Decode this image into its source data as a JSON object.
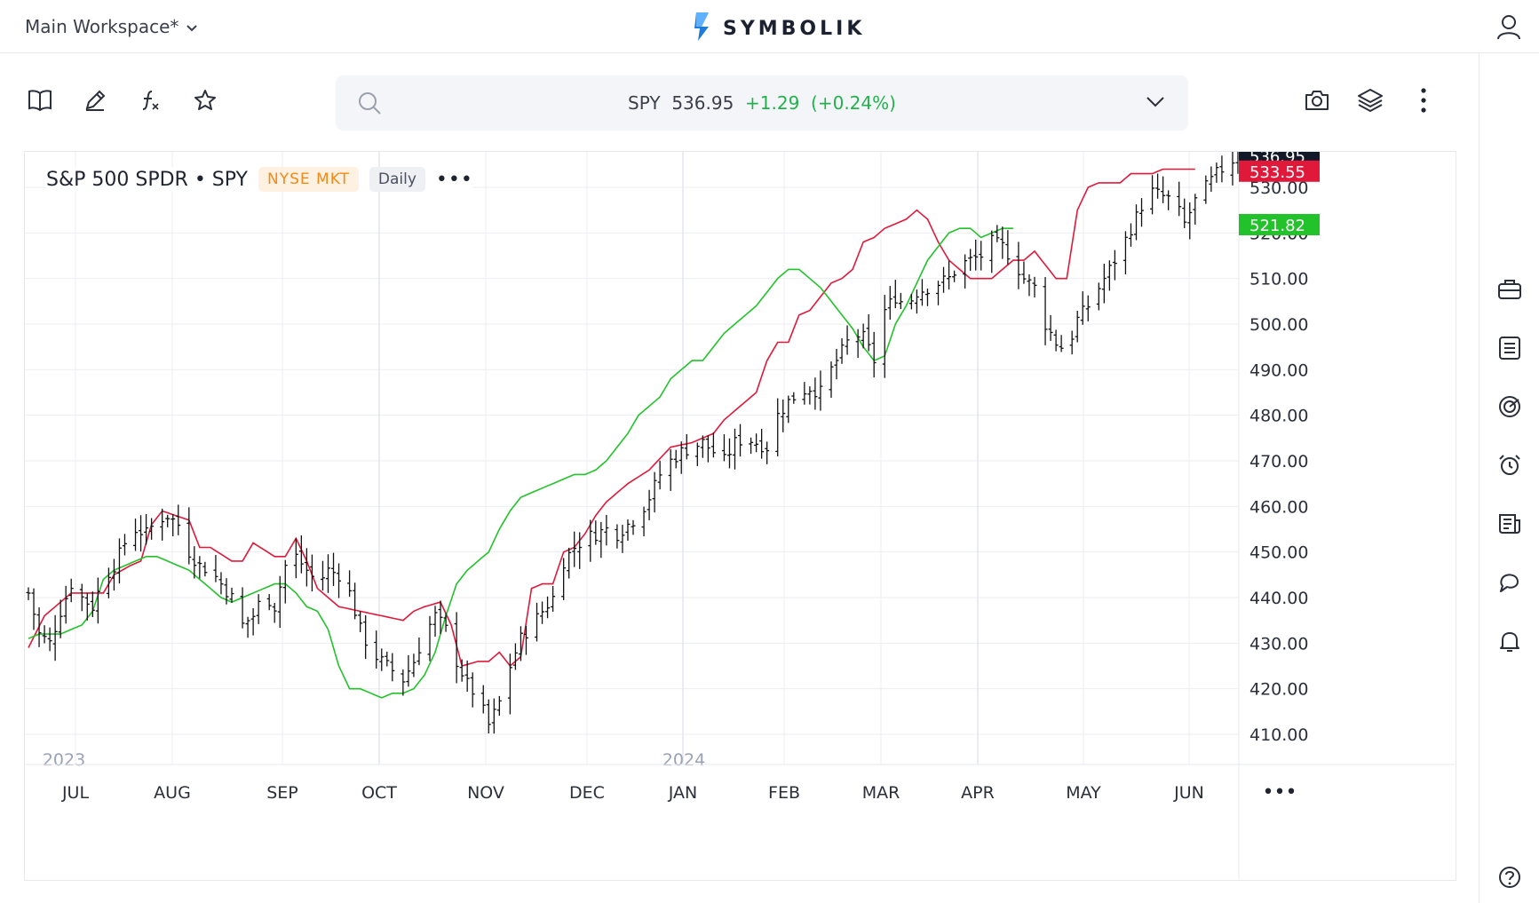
{
  "header": {
    "workspace_label": "Main Workspace*",
    "brand": "SYMBOLIK"
  },
  "search": {
    "ticker": "SPY",
    "price": "536.95",
    "change": "+1.29",
    "change_pct": "(+0.24%)"
  },
  "chart_header": {
    "title": "S&P 500 SPDR • SPY",
    "exchange": "NYSE MKT",
    "interval": "Daily",
    "menu": "•••"
  },
  "icons": {
    "left_tools": [
      "book-icon",
      "pencil-icon",
      "function-icon",
      "star-icon"
    ],
    "right_tools": [
      "camera-icon",
      "layers-icon",
      "more-vertical-icon"
    ],
    "rail": [
      "briefcase-icon",
      "list-icon",
      "radar-icon",
      "alarm-icon",
      "news-icon",
      "chat-icon",
      "bell-icon",
      "help-icon"
    ]
  },
  "colors": {
    "up": "#22b14c",
    "upper_band": "#e0193a",
    "lower_band": "#22c22a",
    "last_price_bg": "#111827",
    "grid": "#eceef3"
  },
  "chart_data": {
    "type": "ohlc",
    "title": "",
    "y_ticks": [
      "530.00",
      "520.00",
      "510.00",
      "500.00",
      "490.00",
      "480.00",
      "470.00",
      "460.00",
      "450.00",
      "440.00",
      "430.00",
      "420.00",
      "410.00"
    ],
    "ylim": [
      406,
      539
    ],
    "x_months": [
      "JUL",
      "AUG",
      "SEP",
      "OCT",
      "NOV",
      "DEC",
      "JAN",
      "FEB",
      "MAR",
      "APR",
      "MAY",
      "JUN"
    ],
    "year_labels": [
      "2023",
      "2024"
    ],
    "axis_menu": "•••",
    "price_labels": [
      {
        "value": "536.95",
        "color": "#111827",
        "y": 536.95
      },
      {
        "value": "533.55",
        "color": "#e0193a",
        "y": 533.55
      },
      {
        "value": "521.82",
        "color": "#22c22a",
        "y": 521.82
      }
    ],
    "series": [
      {
        "name": "SPY",
        "type": "ohlc",
        "knots": [
          [
            0,
            441
          ],
          [
            2,
            432
          ],
          [
            4,
            430
          ],
          [
            6,
            437
          ],
          [
            8,
            443
          ],
          [
            10,
            440
          ],
          [
            12,
            438
          ],
          [
            14,
            444
          ],
          [
            16,
            447
          ],
          [
            18,
            452
          ],
          [
            20,
            455
          ],
          [
            22,
            454
          ],
          [
            24,
            457
          ],
          [
            26,
            458
          ],
          [
            28,
            456
          ],
          [
            30,
            450
          ],
          [
            32,
            447
          ],
          [
            34,
            446
          ],
          [
            36,
            443
          ],
          [
            38,
            440
          ],
          [
            40,
            434
          ],
          [
            42,
            436
          ],
          [
            44,
            441
          ],
          [
            46,
            438
          ],
          [
            48,
            447
          ],
          [
            50,
            449
          ],
          [
            52,
            446
          ],
          [
            54,
            443
          ],
          [
            56,
            446
          ],
          [
            58,
            445
          ],
          [
            60,
            441
          ],
          [
            62,
            433
          ],
          [
            64,
            428
          ],
          [
            66,
            426
          ],
          [
            68,
            424
          ],
          [
            70,
            422
          ],
          [
            72,
            426
          ],
          [
            74,
            432
          ],
          [
            76,
            436
          ],
          [
            78,
            433
          ],
          [
            80,
            426
          ],
          [
            82,
            421
          ],
          [
            84,
            418
          ],
          [
            86,
            412
          ],
          [
            88,
            417
          ],
          [
            90,
            425
          ],
          [
            92,
            431
          ],
          [
            94,
            434
          ],
          [
            96,
            437
          ],
          [
            98,
            440
          ],
          [
            100,
            448
          ],
          [
            102,
            451
          ],
          [
            104,
            453
          ],
          [
            106,
            454
          ],
          [
            108,
            455
          ],
          [
            110,
            454
          ],
          [
            112,
            456
          ],
          [
            114,
            458
          ],
          [
            116,
            462
          ],
          [
            118,
            467
          ],
          [
            120,
            470
          ],
          [
            122,
            472
          ],
          [
            124,
            473
          ],
          [
            126,
            474
          ],
          [
            128,
            472
          ],
          [
            130,
            470
          ],
          [
            132,
            474
          ],
          [
            134,
            475
          ],
          [
            136,
            474
          ],
          [
            138,
            473
          ],
          [
            140,
            480
          ],
          [
            142,
            483
          ],
          [
            144,
            485
          ],
          [
            146,
            486
          ],
          [
            148,
            485
          ],
          [
            150,
            490
          ],
          [
            152,
            494
          ],
          [
            154,
            498
          ],
          [
            156,
            497
          ],
          [
            158,
            492
          ],
          [
            160,
            503
          ],
          [
            162,
            506
          ],
          [
            164,
            504
          ],
          [
            166,
            507
          ],
          [
            168,
            508
          ],
          [
            170,
            509
          ],
          [
            172,
            510
          ],
          [
            174,
            513
          ],
          [
            176,
            514
          ],
          [
            178,
            515
          ],
          [
            180,
            518
          ],
          [
            182,
            517
          ],
          [
            184,
            514
          ],
          [
            186,
            510
          ],
          [
            188,
            508
          ],
          [
            190,
            500
          ],
          [
            192,
            496
          ],
          [
            194,
            494
          ],
          [
            196,
            501
          ],
          [
            198,
            504
          ],
          [
            200,
            508
          ],
          [
            202,
            512
          ],
          [
            204,
            516
          ],
          [
            206,
            521
          ],
          [
            208,
            526
          ],
          [
            210,
            529
          ],
          [
            212,
            528
          ],
          [
            214,
            527
          ],
          [
            216,
            522
          ],
          [
            218,
            527
          ],
          [
            220,
            530
          ],
          [
            222,
            533
          ],
          [
            224,
            535
          ],
          [
            226,
            537
          ]
        ]
      },
      {
        "name": "upper",
        "type": "line",
        "color": "#e0193a",
        "knots": [
          [
            0,
            429
          ],
          [
            3,
            436
          ],
          [
            8,
            441
          ],
          [
            14,
            441
          ],
          [
            16,
            445
          ],
          [
            19,
            447
          ],
          [
            21,
            448
          ],
          [
            23,
            456
          ],
          [
            25,
            459
          ],
          [
            30,
            457
          ],
          [
            32,
            451
          ],
          [
            34,
            451
          ],
          [
            38,
            448
          ],
          [
            40,
            448
          ],
          [
            42,
            452
          ],
          [
            46,
            449
          ],
          [
            48,
            449
          ],
          [
            50,
            453
          ],
          [
            52,
            448
          ],
          [
            54,
            442
          ],
          [
            58,
            438
          ],
          [
            62,
            437
          ],
          [
            66,
            436
          ],
          [
            70,
            435
          ],
          [
            72,
            437
          ],
          [
            74,
            438
          ],
          [
            77,
            439
          ],
          [
            79,
            434
          ],
          [
            81,
            425
          ],
          [
            84,
            426
          ],
          [
            86,
            426
          ],
          [
            88,
            428
          ],
          [
            90,
            425
          ],
          [
            92,
            427
          ],
          [
            94,
            442
          ],
          [
            96,
            443
          ],
          [
            98,
            443
          ],
          [
            100,
            450
          ],
          [
            102,
            451
          ],
          [
            104,
            454
          ],
          [
            106,
            458
          ],
          [
            108,
            461
          ],
          [
            112,
            465
          ],
          [
            116,
            468
          ],
          [
            120,
            473
          ],
          [
            124,
            474
          ],
          [
            126,
            475
          ],
          [
            128,
            476
          ],
          [
            130,
            479
          ],
          [
            132,
            481
          ],
          [
            134,
            483
          ],
          [
            136,
            485
          ],
          [
            138,
            492
          ],
          [
            140,
            496
          ],
          [
            142,
            496
          ],
          [
            144,
            502
          ],
          [
            146,
            503
          ],
          [
            148,
            506
          ],
          [
            150,
            509
          ],
          [
            152,
            510
          ],
          [
            154,
            512
          ],
          [
            156,
            518
          ],
          [
            158,
            519
          ],
          [
            160,
            521
          ],
          [
            164,
            523
          ],
          [
            166,
            525
          ],
          [
            168,
            523
          ],
          [
            170,
            518
          ],
          [
            172,
            514
          ],
          [
            174,
            512
          ],
          [
            176,
            510
          ],
          [
            180,
            510
          ],
          [
            182,
            512
          ],
          [
            184,
            514
          ],
          [
            186,
            514
          ],
          [
            188,
            516
          ],
          [
            190,
            513
          ],
          [
            192,
            510
          ],
          [
            194,
            510
          ],
          [
            196,
            525
          ],
          [
            198,
            530
          ],
          [
            200,
            531
          ],
          [
            202,
            531
          ],
          [
            204,
            531
          ],
          [
            206,
            533
          ],
          [
            208,
            533
          ],
          [
            210,
            533
          ],
          [
            212,
            534
          ],
          [
            214,
            534
          ],
          [
            216,
            534
          ],
          [
            218,
            534
          ]
        ]
      },
      {
        "name": "lower",
        "type": "line",
        "color": "#22c22a",
        "knots": [
          [
            0,
            431
          ],
          [
            2,
            432
          ],
          [
            4,
            432
          ],
          [
            6,
            432
          ],
          [
            8,
            433
          ],
          [
            10,
            434
          ],
          [
            12,
            437
          ],
          [
            14,
            444
          ],
          [
            16,
            446
          ],
          [
            18,
            447
          ],
          [
            20,
            448
          ],
          [
            22,
            449
          ],
          [
            24,
            449
          ],
          [
            26,
            448
          ],
          [
            28,
            447
          ],
          [
            30,
            446
          ],
          [
            32,
            444
          ],
          [
            34,
            442
          ],
          [
            36,
            440
          ],
          [
            38,
            439
          ],
          [
            40,
            440
          ],
          [
            42,
            441
          ],
          [
            44,
            442
          ],
          [
            46,
            443
          ],
          [
            48,
            443
          ],
          [
            50,
            441
          ],
          [
            52,
            438
          ],
          [
            54,
            437
          ],
          [
            56,
            433
          ],
          [
            58,
            425
          ],
          [
            60,
            420
          ],
          [
            62,
            420
          ],
          [
            64,
            419
          ],
          [
            66,
            418
          ],
          [
            68,
            419
          ],
          [
            70,
            419
          ],
          [
            72,
            420
          ],
          [
            74,
            423
          ],
          [
            76,
            428
          ],
          [
            78,
            436
          ],
          [
            80,
            443
          ],
          [
            82,
            446
          ],
          [
            84,
            448
          ],
          [
            86,
            450
          ],
          [
            88,
            455
          ],
          [
            90,
            459
          ],
          [
            92,
            462
          ],
          [
            94,
            463
          ],
          [
            96,
            464
          ],
          [
            98,
            465
          ],
          [
            100,
            466
          ],
          [
            102,
            467
          ],
          [
            104,
            467
          ],
          [
            106,
            468
          ],
          [
            108,
            470
          ],
          [
            110,
            473
          ],
          [
            112,
            476
          ],
          [
            114,
            480
          ],
          [
            116,
            482
          ],
          [
            118,
            484
          ],
          [
            120,
            488
          ],
          [
            122,
            490
          ],
          [
            124,
            492
          ],
          [
            126,
            492
          ],
          [
            128,
            495
          ],
          [
            130,
            498
          ],
          [
            132,
            500
          ],
          [
            134,
            502
          ],
          [
            136,
            504
          ],
          [
            138,
            507
          ],
          [
            140,
            510
          ],
          [
            142,
            512
          ],
          [
            144,
            512
          ],
          [
            146,
            510
          ],
          [
            148,
            508
          ],
          [
            150,
            505
          ],
          [
            152,
            502
          ],
          [
            154,
            499
          ],
          [
            156,
            495
          ],
          [
            158,
            492
          ],
          [
            160,
            493
          ],
          [
            162,
            500
          ],
          [
            164,
            504
          ],
          [
            166,
            509
          ],
          [
            168,
            514
          ],
          [
            170,
            517
          ],
          [
            172,
            520
          ],
          [
            174,
            521
          ],
          [
            176,
            521
          ],
          [
            178,
            519
          ],
          [
            180,
            520
          ],
          [
            182,
            521
          ],
          [
            184,
            521
          ]
        ]
      }
    ]
  }
}
